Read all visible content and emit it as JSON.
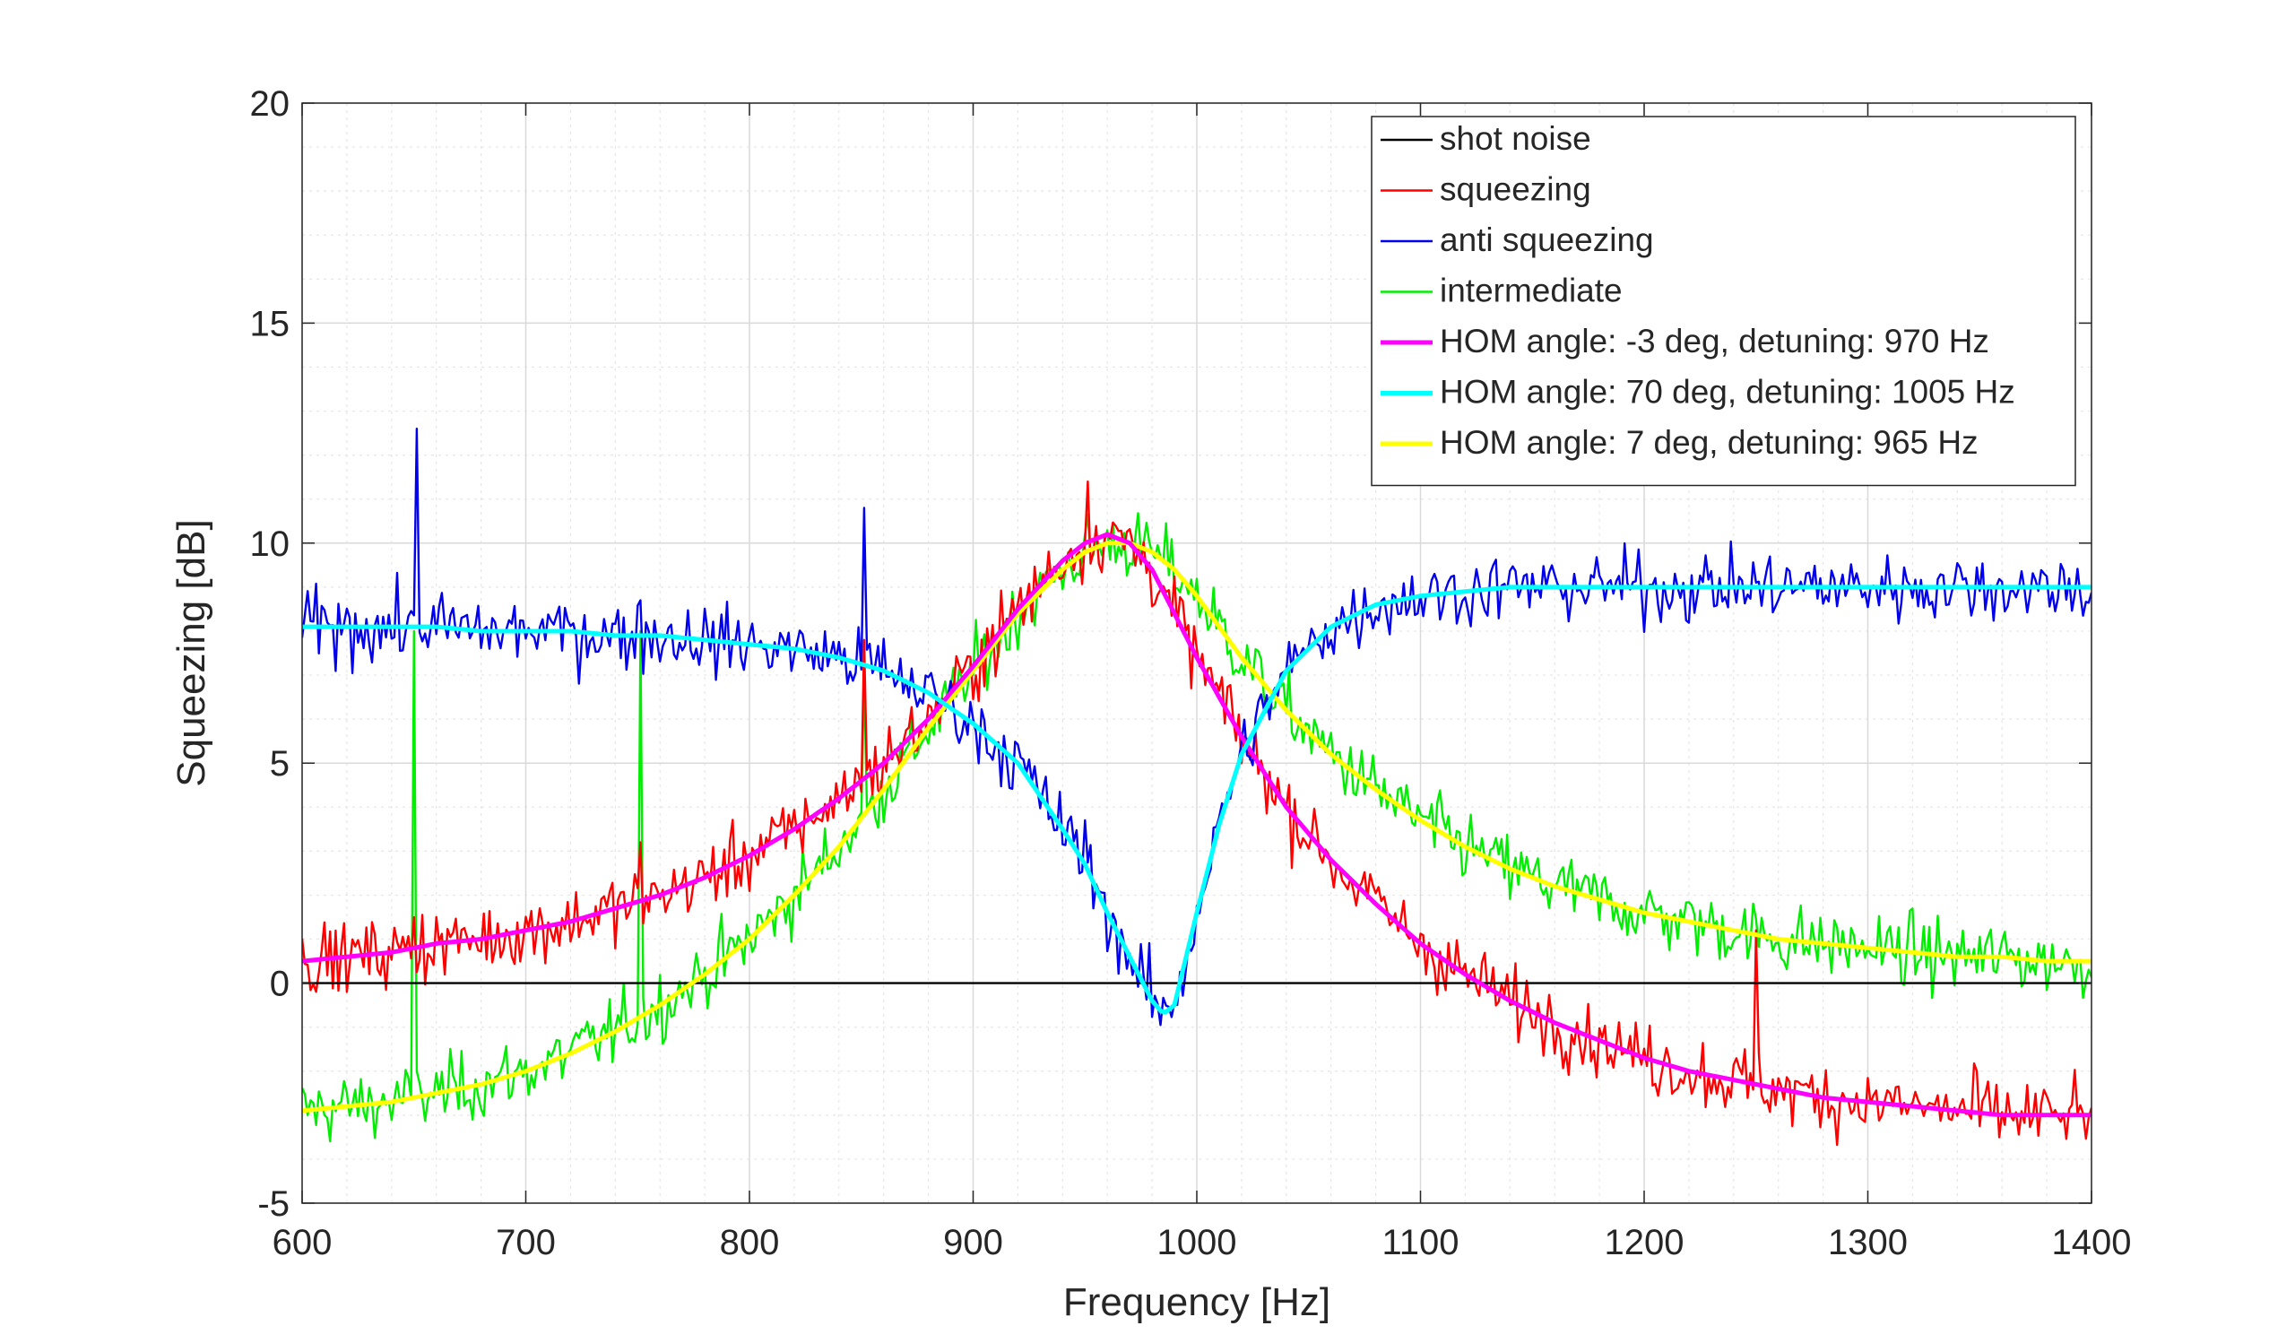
{
  "chart_data": {
    "type": "line",
    "title": "",
    "xlabel": "Frequency [Hz]",
    "ylabel": "Squeezing [dB]",
    "xlim": [
      600,
      1400
    ],
    "ylim": [
      -5,
      20
    ],
    "xticks": [
      600,
      700,
      800,
      900,
      1000,
      1100,
      1200,
      1300,
      1400
    ],
    "yticks": [
      -5,
      0,
      5,
      10,
      15,
      20
    ],
    "xtick_labels": [
      "600",
      "700",
      "800",
      "900",
      "1000",
      "1100",
      "1200",
      "1300",
      "1400"
    ],
    "ytick_labels": [
      "-5",
      "0",
      "5",
      "10",
      "15",
      "20"
    ],
    "grid": true,
    "minor_grid": true,
    "legend_position": "top-right",
    "series": [
      {
        "name": "shot noise",
        "color": "#000000",
        "kind": "measured",
        "x": [
          600,
          1400
        ],
        "y": [
          0,
          0
        ]
      },
      {
        "name": "squeezing",
        "color": "#ff0000",
        "kind": "measured",
        "x": [
          600,
          620,
          640,
          660,
          680,
          700,
          720,
          740,
          760,
          780,
          800,
          820,
          840,
          860,
          880,
          900,
          920,
          940,
          950,
          960,
          970,
          980,
          990,
          1000,
          1010,
          1020,
          1040,
          1060,
          1080,
          1100,
          1120,
          1140,
          1160,
          1180,
          1200,
          1220,
          1240,
          1260,
          1280,
          1300,
          1320,
          1340,
          1360,
          1380,
          1400
        ],
        "y": [
          0.5,
          0.6,
          0.7,
          0.9,
          1.0,
          1.2,
          1.4,
          1.7,
          2.0,
          2.4,
          2.9,
          3.5,
          4.2,
          5.0,
          6.0,
          7.2,
          8.5,
          9.6,
          10.0,
          10.2,
          10.0,
          9.4,
          8.4,
          7.4,
          6.5,
          5.6,
          4.0,
          2.8,
          1.8,
          0.9,
          0.2,
          -0.4,
          -0.9,
          -1.3,
          -1.7,
          -2.0,
          -2.2,
          -2.4,
          -2.6,
          -2.7,
          -2.8,
          -2.9,
          -3.0,
          -3.0,
          -3.0
        ],
        "spikes": [
          [
            650,
            1.5
          ],
          [
            751,
            3.2
          ],
          [
            851,
            7.8
          ],
          [
            951,
            11.4
          ],
          [
            1250,
            1.2
          ],
          [
            1349,
            -2.0
          ]
        ]
      },
      {
        "name": "anti squeezing",
        "color": "#0000ee",
        "kind": "measured",
        "x": [
          600,
          620,
          640,
          660,
          680,
          700,
          720,
          740,
          760,
          780,
          800,
          820,
          840,
          860,
          880,
          900,
          920,
          940,
          950,
          960,
          970,
          980,
          985,
          990,
          1000,
          1010,
          1020,
          1040,
          1060,
          1080,
          1100,
          1120,
          1140,
          1160,
          1180,
          1200,
          1220,
          1240,
          1260,
          1280,
          1300,
          1320,
          1340,
          1360,
          1380,
          1400
        ],
        "y": [
          8.1,
          8.1,
          8.1,
          8.1,
          8.0,
          8.0,
          8.0,
          7.9,
          7.9,
          7.8,
          7.7,
          7.6,
          7.4,
          7.1,
          6.6,
          5.9,
          5.0,
          3.5,
          2.7,
          1.6,
          0.6,
          -0.4,
          -0.7,
          -0.5,
          1.6,
          3.6,
          5.2,
          7.1,
          8.1,
          8.6,
          8.8,
          8.9,
          9.0,
          9.0,
          9.0,
          9.0,
          9.0,
          9.0,
          9.0,
          9.0,
          9.0,
          9.0,
          9.0,
          9.0,
          9.0,
          9.0
        ],
        "spikes": [
          [
            651,
            12.6
          ],
          [
            751,
            8.7
          ],
          [
            851,
            10.8
          ],
          [
            950,
            3.7
          ]
        ]
      },
      {
        "name": "intermediate",
        "color": "#00ee00",
        "kind": "measured",
        "x": [
          600,
          620,
          640,
          660,
          680,
          700,
          720,
          740,
          760,
          780,
          800,
          820,
          840,
          860,
          880,
          900,
          920,
          940,
          950,
          960,
          970,
          980,
          990,
          1000,
          1010,
          1020,
          1040,
          1060,
          1080,
          1100,
          1120,
          1140,
          1160,
          1180,
          1200,
          1220,
          1240,
          1260,
          1280,
          1300,
          1320,
          1340,
          1360,
          1380,
          1400
        ],
        "y": [
          -2.9,
          -2.8,
          -2.7,
          -2.5,
          -2.3,
          -2.0,
          -1.6,
          -1.1,
          -0.5,
          0.2,
          1.0,
          2.0,
          3.1,
          4.4,
          5.8,
          7.1,
          8.4,
          9.4,
          9.8,
          10.0,
          10.0,
          9.8,
          9.4,
          8.8,
          8.1,
          7.4,
          6.2,
          5.2,
          4.4,
          3.7,
          3.1,
          2.6,
          2.2,
          1.9,
          1.6,
          1.4,
          1.2,
          1.0,
          0.9,
          0.8,
          0.7,
          0.6,
          0.6,
          0.5,
          0.5
        ],
        "spikes": [
          [
            650,
            8.0
          ],
          [
            651,
            -2.0
          ],
          [
            751,
            8.0
          ],
          [
            851,
            7.0
          ]
        ]
      },
      {
        "name": "HOM angle: -3 deg, detuning: 970 Hz",
        "color": "#ff00ff",
        "kind": "fit",
        "x": [
          600,
          620,
          640,
          660,
          680,
          700,
          720,
          740,
          760,
          780,
          800,
          820,
          840,
          860,
          880,
          900,
          920,
          940,
          950,
          960,
          970,
          980,
          990,
          1000,
          1010,
          1020,
          1040,
          1060,
          1080,
          1100,
          1120,
          1140,
          1160,
          1180,
          1200,
          1220,
          1240,
          1260,
          1280,
          1300,
          1320,
          1340,
          1360,
          1380,
          1400
        ],
        "y": [
          0.5,
          0.6,
          0.7,
          0.9,
          1.0,
          1.2,
          1.4,
          1.7,
          2.0,
          2.4,
          2.9,
          3.5,
          4.2,
          5.0,
          6.0,
          7.2,
          8.5,
          9.6,
          10.0,
          10.2,
          10.0,
          9.4,
          8.4,
          7.4,
          6.5,
          5.6,
          4.0,
          2.8,
          1.8,
          0.9,
          0.2,
          -0.4,
          -0.9,
          -1.3,
          -1.7,
          -2.0,
          -2.2,
          -2.4,
          -2.6,
          -2.7,
          -2.8,
          -2.9,
          -3.0,
          -3.0,
          -3.0
        ]
      },
      {
        "name": "HOM angle: 70 deg, detuning: 1005 Hz",
        "color": "#00ffff",
        "kind": "fit",
        "x": [
          600,
          620,
          640,
          660,
          680,
          700,
          720,
          740,
          760,
          780,
          800,
          820,
          840,
          860,
          880,
          900,
          920,
          940,
          950,
          960,
          970,
          980,
          985,
          990,
          1000,
          1010,
          1020,
          1040,
          1060,
          1080,
          1100,
          1120,
          1140,
          1160,
          1180,
          1200,
          1220,
          1240,
          1260,
          1280,
          1300,
          1320,
          1340,
          1360,
          1380,
          1400
        ],
        "y": [
          8.1,
          8.1,
          8.1,
          8.1,
          8.0,
          8.0,
          8.0,
          7.9,
          7.9,
          7.8,
          7.7,
          7.6,
          7.4,
          7.1,
          6.6,
          5.9,
          5.0,
          3.5,
          2.7,
          1.6,
          0.6,
          -0.4,
          -0.7,
          -0.5,
          1.6,
          3.6,
          5.2,
          7.1,
          8.1,
          8.6,
          8.8,
          8.9,
          9.0,
          9.0,
          9.0,
          9.0,
          9.0,
          9.0,
          9.0,
          9.0,
          9.0,
          9.0,
          9.0,
          9.0,
          9.0,
          9.0
        ]
      },
      {
        "name": "HOM angle: 7 deg, detuning: 965 Hz",
        "color": "#ffff00",
        "kind": "fit",
        "x": [
          600,
          620,
          640,
          660,
          680,
          700,
          720,
          740,
          760,
          780,
          800,
          820,
          840,
          860,
          880,
          900,
          920,
          940,
          950,
          960,
          970,
          980,
          990,
          1000,
          1010,
          1020,
          1040,
          1060,
          1080,
          1100,
          1120,
          1140,
          1160,
          1180,
          1200,
          1220,
          1240,
          1260,
          1280,
          1300,
          1320,
          1340,
          1360,
          1380,
          1400
        ],
        "y": [
          -2.9,
          -2.8,
          -2.7,
          -2.5,
          -2.3,
          -2.0,
          -1.6,
          -1.1,
          -0.5,
          0.2,
          1.0,
          2.0,
          3.1,
          4.4,
          5.8,
          7.1,
          8.4,
          9.4,
          9.8,
          10.0,
          10.0,
          9.8,
          9.4,
          8.8,
          8.1,
          7.4,
          6.2,
          5.2,
          4.4,
          3.7,
          3.1,
          2.6,
          2.2,
          1.9,
          1.6,
          1.4,
          1.2,
          1.0,
          0.9,
          0.8,
          0.7,
          0.6,
          0.6,
          0.5,
          0.5
        ]
      }
    ],
    "draw_order": [
      3,
      1,
      2,
      0,
      6,
      4,
      5
    ]
  }
}
